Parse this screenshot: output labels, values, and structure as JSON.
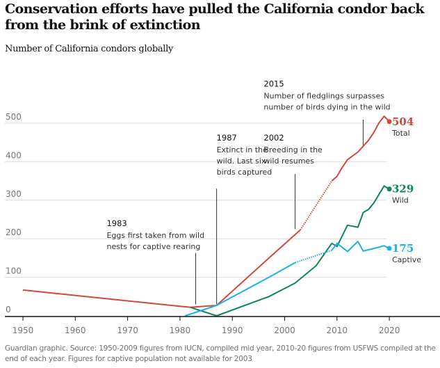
{
  "header": {
    "title": "Conservation efforts have pulled the California condor back from the brink of extinction",
    "subtitle": "Number of California condors globally"
  },
  "footer": {
    "source": "Guardian graphic. Source: 1950-2009 figures from IUCN, compiled mid year, 2010-20 figures from USFWS compiled at the end of each year. Figures for captive population not available for 2003"
  },
  "chart_data": {
    "type": "line",
    "title": "Conservation efforts have pulled the California condor back from the brink of extinction",
    "subtitle": "Number of California condors globally",
    "xlabel": "",
    "ylabel": "Number of California condors globally",
    "xlim": [
      1948,
      2030
    ],
    "ylim": [
      0,
      520
    ],
    "x_ticks": [
      1950,
      1960,
      1970,
      1980,
      1990,
      2000,
      2010,
      2020
    ],
    "y_ticks": [
      0,
      100,
      200,
      300,
      400,
      500
    ],
    "grid": true,
    "legend": "end-of-line labels (right)",
    "series": [
      {
        "name": "Total",
        "color": "#d1493b",
        "end_value": "504",
        "segments": [
          {
            "style": "solid",
            "points": [
              [
                1950,
                67
              ],
              [
                1982,
                22
              ],
              [
                1987,
                27
              ],
              [
                1997,
                150
              ],
              [
                2003,
                223
              ]
            ]
          },
          {
            "style": "dotted",
            "points": [
              [
                2003,
                223
              ],
              [
                2009,
                350
              ]
            ]
          },
          {
            "style": "solid",
            "points": [
              [
                2009,
                350
              ],
              [
                2010,
                362
              ],
              [
                2011,
                385
              ],
              [
                2012,
                405
              ],
              [
                2013,
                415
              ],
              [
                2014,
                425
              ],
              [
                2015,
                440
              ],
              [
                2016,
                455
              ],
              [
                2017,
                475
              ],
              [
                2018,
                500
              ],
              [
                2019,
                518
              ],
              [
                2020,
                504
              ]
            ]
          }
        ]
      },
      {
        "name": "Wild",
        "color": "#10845a",
        "end_value": "329",
        "segments": [
          {
            "style": "solid",
            "points": [
              [
                1982,
                22
              ],
              [
                1987,
                0
              ],
              [
                1997,
                50
              ],
              [
                2002,
                85
              ],
              [
                2006,
                130
              ],
              [
                2009,
                188
              ],
              [
                2010,
                180
              ],
              [
                2012,
                235
              ],
              [
                2014,
                230
              ],
              [
                2015,
                268
              ],
              [
                2016,
                276
              ],
              [
                2017,
                292
              ],
              [
                2019,
                337
              ],
              [
                2020,
                329
              ]
            ]
          }
        ]
      },
      {
        "name": "Captive",
        "color": "#1bb0e8",
        "end_value": "175",
        "segments": [
          {
            "style": "solid",
            "points": [
              [
                1981,
                0
              ],
              [
                1987,
                27
              ],
              [
                1997,
                100
              ],
              [
                2002,
                138
              ]
            ]
          },
          {
            "style": "dotted",
            "points": [
              [
                2002,
                138
              ],
              [
                2009,
                170
              ]
            ]
          },
          {
            "style": "solid",
            "points": [
              [
                2009,
                170
              ],
              [
                2010,
                188
              ],
              [
                2012,
                167
              ],
              [
                2014,
                193
              ],
              [
                2015,
                168
              ],
              [
                2018,
                178
              ],
              [
                2019,
                182
              ],
              [
                2020,
                175
              ]
            ]
          }
        ]
      }
    ],
    "annotations": [
      {
        "year": "1983",
        "text": [
          "Eggs first taken from wild",
          "nests for captive rearing"
        ],
        "x": 1983,
        "label_x": 1966,
        "label_value": 233,
        "line_from": 163,
        "line_to": 30
      },
      {
        "year": "1987",
        "text": [
          "Extinct in the",
          "wild. Last six",
          "birds captured"
        ],
        "x": 1987,
        "label_x": 1987,
        "label_value": 455,
        "line_from": 330,
        "line_to": 30
      },
      {
        "year": "2002",
        "text": [
          "Breeding in the",
          "wild resumes"
        ],
        "x": 2002,
        "label_x": 1996,
        "label_value": 455,
        "line_from": 368,
        "line_to": 225
      },
      {
        "year": "2015",
        "text": [
          "Number of fledglings surpasses",
          "number of birds dying in the wild"
        ],
        "x": 2015,
        "label_x": 1996,
        "label_value": 595,
        "line_from": 509,
        "line_to": 440
      }
    ]
  }
}
